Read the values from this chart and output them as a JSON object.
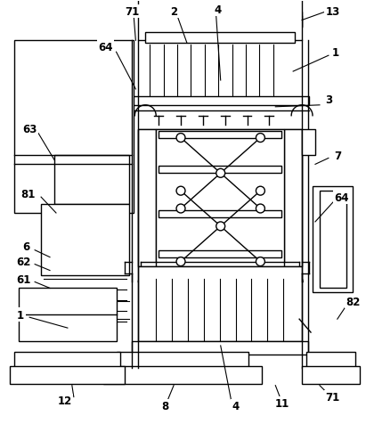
{
  "bg_color": "#ffffff",
  "line_color": "#000000",
  "lw": 1.0,
  "fig_width": 4.11,
  "fig_height": 4.77,
  "dpi": 100
}
